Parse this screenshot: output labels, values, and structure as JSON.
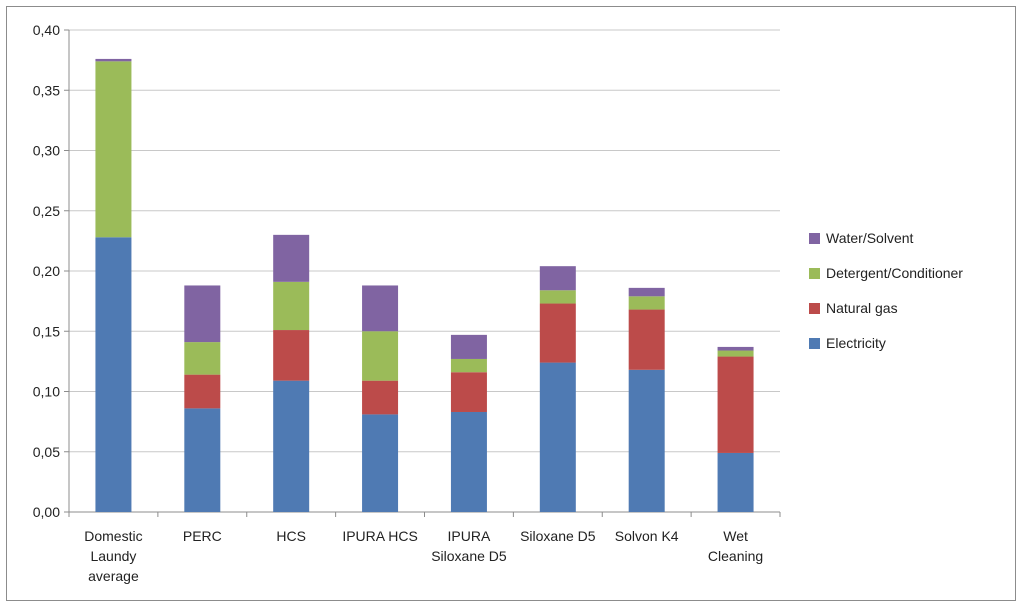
{
  "chart_data": {
    "type": "bar",
    "stacked": true,
    "categories": [
      [
        "Domestic",
        "Laundy",
        "average"
      ],
      [
        "PERC"
      ],
      [
        "HCS"
      ],
      [
        "IPURA HCS"
      ],
      [
        "IPURA",
        "Siloxane D5"
      ],
      [
        "Siloxane D5"
      ],
      [
        "Solvon K4"
      ],
      [
        "Wet",
        "Cleaning"
      ]
    ],
    "series": [
      {
        "name": "Electricity",
        "color": "#4f7ab3",
        "values": [
          0.228,
          0.086,
          0.109,
          0.081,
          0.083,
          0.124,
          0.118,
          0.049
        ]
      },
      {
        "name": "Natural gas",
        "color": "#bc4b4a",
        "values": [
          0.0,
          0.028,
          0.042,
          0.028,
          0.033,
          0.049,
          0.05,
          0.08
        ]
      },
      {
        "name": "Detergent/Conditioner",
        "color": "#9bbb59",
        "values": [
          0.146,
          0.027,
          0.04,
          0.041,
          0.011,
          0.011,
          0.011,
          0.005
        ]
      },
      {
        "name": "Water/Solvent",
        "color": "#8064a2",
        "values": [
          0.002,
          0.047,
          0.039,
          0.038,
          0.02,
          0.02,
          0.007,
          0.003
        ]
      }
    ],
    "ylim": [
      0,
      0.4
    ],
    "yticks": [
      "0,00",
      "0,05",
      "0,10",
      "0,15",
      "0,20",
      "0,25",
      "0,30",
      "0,35",
      "0,40"
    ],
    "ytick_values": [
      0,
      0.05,
      0.1,
      0.15,
      0.2,
      0.25,
      0.3,
      0.35,
      0.4
    ],
    "grid": true,
    "legend_position": "right",
    "legend_order": [
      "Water/Solvent",
      "Detergent/Conditioner",
      "Natural gas",
      "Electricity"
    ],
    "title": "",
    "xlabel": "",
    "ylabel": ""
  }
}
